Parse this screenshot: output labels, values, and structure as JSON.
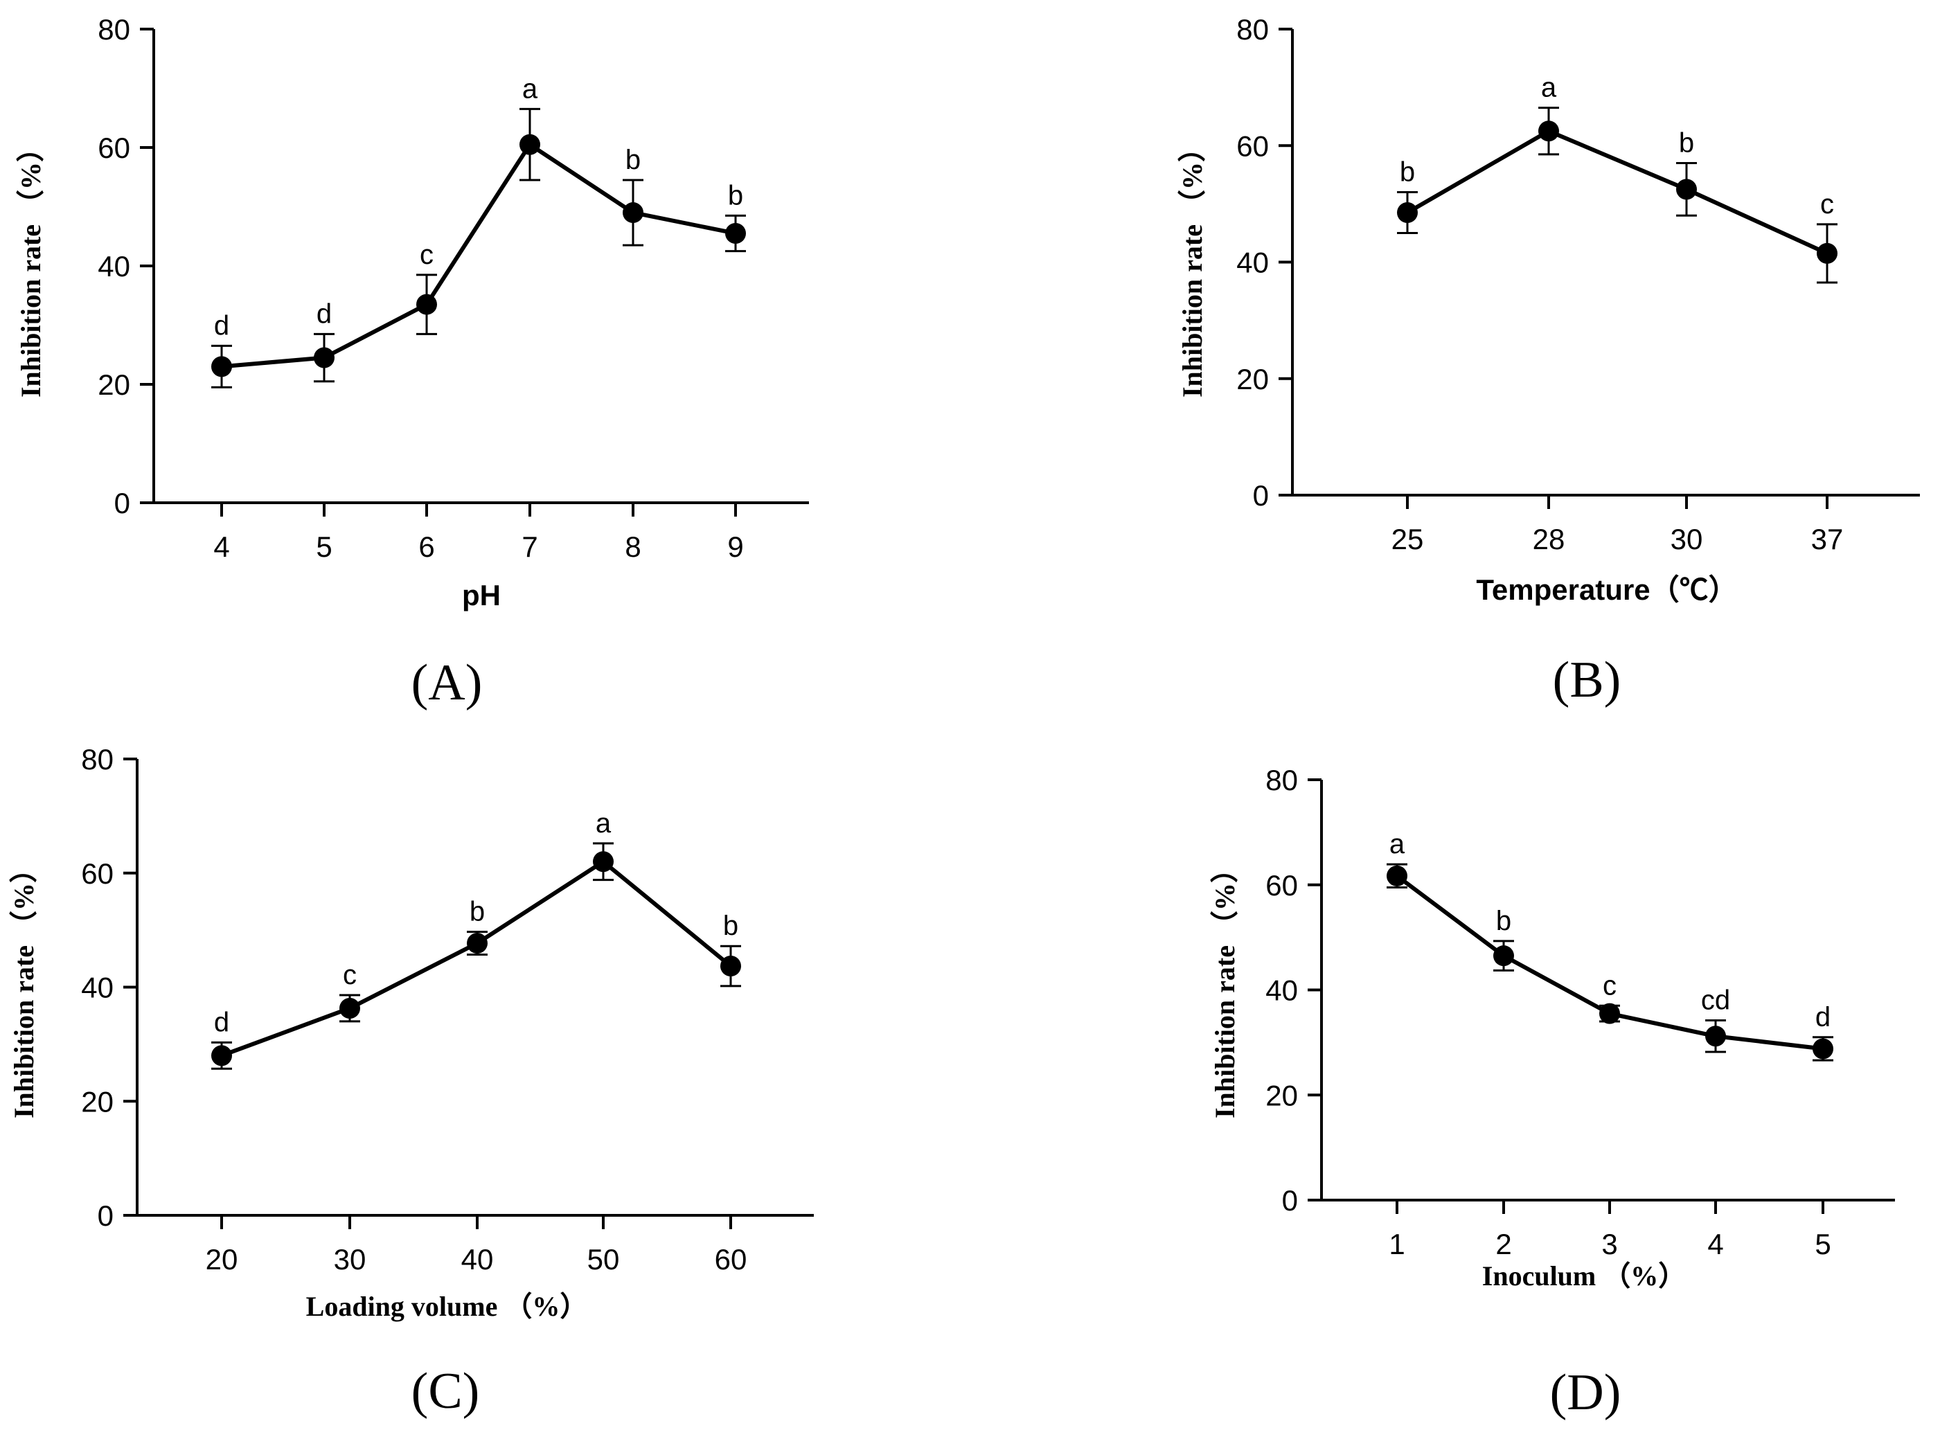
{
  "chart_data": [
    {
      "type": "line",
      "panel_label": "(A)",
      "xlabel": "pH",
      "ylabel": "Inhibition rate （%）",
      "categories": [
        "4",
        "5",
        "6",
        "7",
        "8",
        "9"
      ],
      "values": [
        23,
        24.5,
        33.5,
        60.5,
        49,
        45.5
      ],
      "errors": [
        3.5,
        4,
        5,
        6,
        5.5,
        3
      ],
      "significance": [
        "d",
        "d",
        "c",
        "a",
        "b",
        "b"
      ],
      "yticks": [
        "0",
        "20",
        "40",
        "60",
        "80"
      ],
      "ylim": [
        0,
        80
      ]
    },
    {
      "type": "line",
      "panel_label": "(B)",
      "xlabel": "Temperature（℃）",
      "ylabel": "Inhibition rate （%）",
      "categories": [
        "25",
        "28",
        "30",
        "37"
      ],
      "values": [
        48.5,
        62.5,
        52.5,
        41.5
      ],
      "errors": [
        3.5,
        4,
        4.5,
        5
      ],
      "significance": [
        "b",
        "a",
        "b",
        "c"
      ],
      "yticks": [
        "0",
        "20",
        "40",
        "60",
        "80"
      ],
      "ylim": [
        0,
        80
      ]
    },
    {
      "type": "line",
      "panel_label": "(C)",
      "xlabel": "Loading volume （%）",
      "ylabel": "Inhibition rate （%）",
      "categories": [
        "20",
        "30",
        "40",
        "50",
        "60"
      ],
      "values": [
        28,
        36.3,
        47.7,
        62,
        43.7
      ],
      "errors": [
        2.3,
        2.3,
        2,
        3.2,
        3.5
      ],
      "significance": [
        "d",
        "c",
        "b",
        "a",
        "b"
      ],
      "yticks": [
        "0",
        "20",
        "40",
        "60",
        "80"
      ],
      "ylim": [
        0,
        80
      ]
    },
    {
      "type": "line",
      "panel_label": "(D)",
      "xlabel": "Inoculum （%）",
      "ylabel": "Inhibition rate （%）",
      "categories": [
        "1",
        "2",
        "3",
        "4",
        "5"
      ],
      "values": [
        61.7,
        46.5,
        35.5,
        31.2,
        28.8
      ],
      "errors": [
        2.2,
        2.8,
        1.5,
        3,
        2.2
      ],
      "significance": [
        "a",
        "b",
        "c",
        "cd",
        "d"
      ],
      "yticks": [
        "0",
        "20",
        "40",
        "60",
        "80"
      ],
      "ylim": [
        0,
        80
      ]
    }
  ]
}
